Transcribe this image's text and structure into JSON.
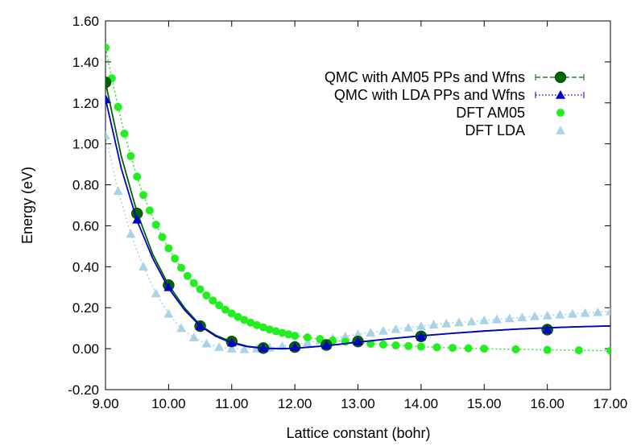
{
  "chart_data": {
    "type": "line",
    "title": "",
    "xlabel": "Lattice constant (bohr)",
    "ylabel": "Energy (eV)",
    "xlim": [
      9.0,
      17.0
    ],
    "ylim": [
      -0.2,
      1.6
    ],
    "xticks": [
      "9.00",
      "10.00",
      "11.00",
      "12.00",
      "13.00",
      "14.00",
      "15.00",
      "16.00",
      "17.00"
    ],
    "yticks": [
      "-0.20",
      "0.00",
      "0.20",
      "0.40",
      "0.60",
      "0.80",
      "1.00",
      "1.20",
      "1.40",
      "1.60"
    ],
    "grid": false,
    "legend_position": "top-right",
    "series": [
      {
        "name": "QMC with AM05 PPs and Wfns",
        "color": "#006400",
        "marker": "circle",
        "line": "dashed",
        "points": [
          [
            9.0,
            1.3
          ],
          [
            9.5,
            0.66
          ],
          [
            10.0,
            0.31
          ],
          [
            10.5,
            0.11
          ],
          [
            11.0,
            0.035
          ],
          [
            11.5,
            0.003
          ],
          [
            12.0,
            0.008
          ],
          [
            12.5,
            0.018
          ],
          [
            13.0,
            0.035
          ],
          [
            14.0,
            0.06
          ],
          [
            16.0,
            0.093
          ]
        ],
        "fit": [
          [
            9.0,
            1.3
          ],
          [
            9.25,
            0.94
          ],
          [
            9.5,
            0.665
          ],
          [
            9.75,
            0.46
          ],
          [
            10.0,
            0.31
          ],
          [
            10.25,
            0.2
          ],
          [
            10.5,
            0.115
          ],
          [
            10.75,
            0.065
          ],
          [
            11.0,
            0.033
          ],
          [
            11.25,
            0.012
          ],
          [
            11.5,
            0.003
          ],
          [
            11.75,
            0.0
          ],
          [
            12.0,
            0.002
          ],
          [
            12.5,
            0.014
          ],
          [
            13.0,
            0.032
          ],
          [
            13.5,
            0.048
          ],
          [
            14.0,
            0.063
          ],
          [
            14.5,
            0.075
          ],
          [
            15.0,
            0.086
          ],
          [
            15.5,
            0.095
          ],
          [
            16.0,
            0.102
          ],
          [
            16.5,
            0.107
          ],
          [
            17.0,
            0.111
          ]
        ]
      },
      {
        "name": "QMC with LDA PPs and Wfns",
        "color": "#0000cd",
        "marker": "triangle",
        "line": "dotted",
        "points": [
          [
            9.0,
            1.22
          ],
          [
            9.5,
            0.63
          ],
          [
            10.0,
            0.3
          ],
          [
            10.5,
            0.11
          ],
          [
            11.0,
            0.03
          ],
          [
            11.5,
            0.003
          ],
          [
            12.0,
            0.008
          ],
          [
            12.5,
            0.017
          ],
          [
            13.0,
            0.035
          ],
          [
            14.0,
            0.058
          ],
          [
            16.0,
            0.093
          ]
        ],
        "fit": [
          [
            9.0,
            1.22
          ],
          [
            9.25,
            0.88
          ],
          [
            9.5,
            0.625
          ],
          [
            9.75,
            0.44
          ],
          [
            10.0,
            0.295
          ],
          [
            10.25,
            0.19
          ],
          [
            10.5,
            0.11
          ],
          [
            10.75,
            0.06
          ],
          [
            11.0,
            0.028
          ],
          [
            11.25,
            0.01
          ],
          [
            11.5,
            0.002
          ],
          [
            11.75,
            0.0
          ],
          [
            12.0,
            0.002
          ],
          [
            12.5,
            0.014
          ],
          [
            13.0,
            0.032
          ],
          [
            13.5,
            0.048
          ],
          [
            14.0,
            0.063
          ],
          [
            14.5,
            0.075
          ],
          [
            15.0,
            0.086
          ],
          [
            15.5,
            0.095
          ],
          [
            16.0,
            0.102
          ],
          [
            16.5,
            0.107
          ],
          [
            17.0,
            0.111
          ]
        ]
      },
      {
        "name": "DFT AM05",
        "color": "#22ee22",
        "marker": "circle-small",
        "line": "dotted",
        "points": [
          [
            9.0,
            1.47
          ],
          [
            9.1,
            1.32
          ],
          [
            9.2,
            1.18
          ],
          [
            9.3,
            1.05
          ],
          [
            9.4,
            0.94
          ],
          [
            9.5,
            0.84
          ],
          [
            9.6,
            0.75
          ],
          [
            9.7,
            0.675
          ],
          [
            9.8,
            0.605
          ],
          [
            9.9,
            0.545
          ],
          [
            10.0,
            0.49
          ],
          [
            10.1,
            0.44
          ],
          [
            10.2,
            0.395
          ],
          [
            10.3,
            0.355
          ],
          [
            10.4,
            0.32
          ],
          [
            10.5,
            0.29
          ],
          [
            10.6,
            0.26
          ],
          [
            10.7,
            0.235
          ],
          [
            10.8,
            0.212
          ],
          [
            10.9,
            0.19
          ],
          [
            11.0,
            0.172
          ],
          [
            11.1,
            0.155
          ],
          [
            11.2,
            0.14
          ],
          [
            11.3,
            0.127
          ],
          [
            11.4,
            0.115
          ],
          [
            11.5,
            0.104
          ],
          [
            11.6,
            0.094
          ],
          [
            11.7,
            0.085
          ],
          [
            11.8,
            0.077
          ],
          [
            11.9,
            0.07
          ],
          [
            12.0,
            0.063
          ],
          [
            12.2,
            0.055
          ],
          [
            12.4,
            0.047
          ],
          [
            12.6,
            0.04
          ],
          [
            12.8,
            0.034
          ],
          [
            13.0,
            0.029
          ],
          [
            13.2,
            0.024
          ],
          [
            13.4,
            0.02
          ],
          [
            13.6,
            0.016
          ],
          [
            13.8,
            0.013
          ],
          [
            14.0,
            0.01
          ],
          [
            14.25,
            0.007
          ],
          [
            14.5,
            0.004
          ],
          [
            14.75,
            0.002
          ],
          [
            15.0,
            0.0
          ],
          [
            15.5,
            -0.003
          ],
          [
            16.0,
            -0.006
          ],
          [
            16.5,
            -0.008
          ],
          [
            17.0,
            -0.01
          ]
        ]
      },
      {
        "name": "DFT LDA",
        "color": "#a8d4e6",
        "marker": "triangle",
        "line": "dotted",
        "points": [
          [
            9.0,
            1.04
          ],
          [
            9.2,
            0.77
          ],
          [
            9.4,
            0.56
          ],
          [
            9.6,
            0.4
          ],
          [
            9.8,
            0.27
          ],
          [
            10.0,
            0.17
          ],
          [
            10.2,
            0.1
          ],
          [
            10.4,
            0.055
          ],
          [
            10.6,
            0.025
          ],
          [
            10.8,
            0.008
          ],
          [
            11.0,
            0.0
          ],
          [
            11.2,
            -0.003
          ],
          [
            11.4,
            0.0
          ],
          [
            11.6,
            0.005
          ],
          [
            11.8,
            0.012
          ],
          [
            12.0,
            0.02
          ],
          [
            12.2,
            0.03
          ],
          [
            12.4,
            0.04
          ],
          [
            12.6,
            0.05
          ],
          [
            12.8,
            0.06
          ],
          [
            13.0,
            0.07
          ],
          [
            13.2,
            0.078
          ],
          [
            13.4,
            0.087
          ],
          [
            13.6,
            0.095
          ],
          [
            13.8,
            0.103
          ],
          [
            14.0,
            0.11
          ],
          [
            14.2,
            0.117
          ],
          [
            14.4,
            0.123
          ],
          [
            14.6,
            0.128
          ],
          [
            14.8,
            0.133
          ],
          [
            15.0,
            0.138
          ],
          [
            15.2,
            0.143
          ],
          [
            15.4,
            0.148
          ],
          [
            15.6,
            0.153
          ],
          [
            15.8,
            0.158
          ],
          [
            16.0,
            0.162
          ],
          [
            16.2,
            0.166
          ],
          [
            16.4,
            0.17
          ],
          [
            16.6,
            0.174
          ],
          [
            16.8,
            0.178
          ],
          [
            17.0,
            0.182
          ]
        ]
      }
    ]
  }
}
